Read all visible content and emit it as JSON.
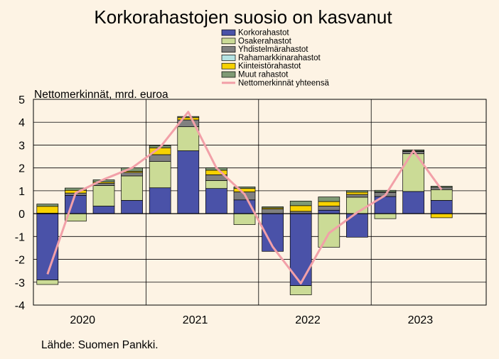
{
  "chart_data": {
    "type": "bar",
    "stacked": true,
    "title": "Korkorahastojen suosio on kasvanut",
    "ylabel": "Nettomerkinnät, mrd. euroa",
    "xlabel": "",
    "source": "Lähde: Suomen Pankki.",
    "ylim": [
      -4,
      5
    ],
    "yticks": [
      5,
      4,
      3,
      2,
      1,
      0,
      -1,
      -2,
      -3,
      -4
    ],
    "year_labels": [
      "2020",
      "2021",
      "2022",
      "2023"
    ],
    "quarters_per_year": 4,
    "grid": true,
    "legend_position": "top-center",
    "bar_series": [
      {
        "name": "Korkorahastot",
        "color": "#4a52a8",
        "values": [
          -2.9,
          0.8,
          0.33,
          0.58,
          1.13,
          2.75,
          1.1,
          0.6,
          -1.65,
          -3.15,
          0.15,
          -1.03,
          0.75,
          0.97,
          0.58
        ]
      },
      {
        "name": "Osakerahastot",
        "color": "#cbdb96",
        "values": [
          -0.2,
          -0.33,
          0.9,
          1.07,
          1.15,
          1.05,
          0.35,
          -0.48,
          0.0,
          -0.4,
          -1.47,
          0.72,
          -0.22,
          1.65,
          0.47
        ]
      },
      {
        "name": "Yhdistelmärahastot",
        "color": "#808080",
        "values": [
          0.02,
          0.1,
          0.1,
          0.15,
          0.3,
          0.3,
          0.25,
          0.35,
          0.2,
          0.1,
          0.18,
          0.12,
          0.18,
          0.1,
          0.1
        ]
      },
      {
        "name": "Rahamarkkinarahastot",
        "color": "#b5e3e3",
        "values": [
          0.0,
          0.0,
          0.0,
          0.0,
          0.0,
          0.0,
          0.0,
          0.0,
          0.0,
          0.0,
          0.0,
          0.0,
          0.0,
          0.0,
          0.0
        ]
      },
      {
        "name": "Kiinteistörahastot",
        "color": "#f7d200",
        "values": [
          0.3,
          0.12,
          0.05,
          0.05,
          0.3,
          0.1,
          0.2,
          0.15,
          0.05,
          0.25,
          0.2,
          0.1,
          0.02,
          0.02,
          -0.18
        ]
      },
      {
        "name": "Muut rahastot",
        "color": "#7f9a74",
        "values": [
          0.1,
          0.1,
          0.1,
          0.15,
          0.1,
          0.05,
          0.1,
          0.07,
          0.05,
          0.2,
          0.2,
          0.07,
          0.07,
          0.05,
          0.05
        ]
      }
    ],
    "line_series": {
      "name": "Nettomerkinnät yhteensä",
      "color": "#f2a0a8",
      "values": [
        -2.65,
        0.9,
        1.5,
        2.0,
        2.9,
        4.45,
        2.0,
        0.85,
        -1.45,
        -3.05,
        -0.85,
        0.05,
        0.8,
        2.75,
        1.05
      ]
    }
  }
}
